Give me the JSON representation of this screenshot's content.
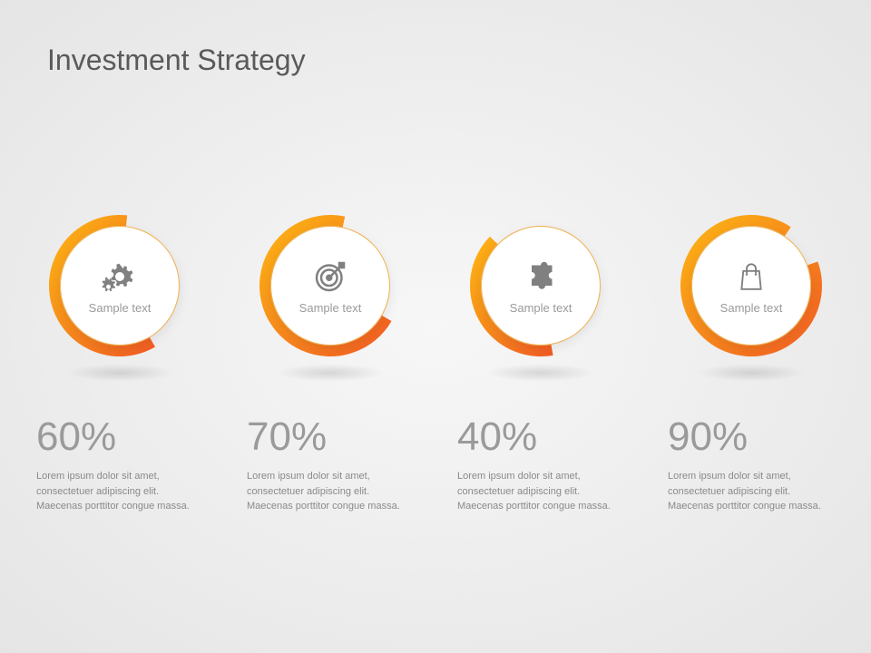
{
  "title": "Investment Strategy",
  "arc": {
    "outer_radius": 78,
    "inner_radius": 66,
    "gradient_start": "#fdb813",
    "gradient_end": "#f15a24",
    "inner_border": "#f0b050",
    "inner_bg": "#ffffff"
  },
  "typography": {
    "title_color": "#5a5a5a",
    "title_fontsize": 32,
    "percent_color": "#9a9a9a",
    "percent_fontsize": 44,
    "label_color": "#9a9a9a",
    "label_fontsize": 13,
    "desc_color": "#8a8a8a",
    "desc_fontsize": 11,
    "icon_color": "#808080"
  },
  "background": {
    "center": "#f7f7f7",
    "edge": "#e5e5e5"
  },
  "items": [
    {
      "icon": "gears",
      "label": "Sample text",
      "percent": "60%",
      "arc_start_deg": 150,
      "arc_sweep_deg": 216,
      "desc": "Lorem ipsum dolor sit amet, consectetuer adipiscing elit. Maecenas porttitor congue massa."
    },
    {
      "icon": "target",
      "label": "Sample text",
      "percent": "70%",
      "arc_start_deg": 120,
      "arc_sweep_deg": 252,
      "desc": "Lorem ipsum dolor sit amet, consectetuer adipiscing elit. Maecenas porttitor congue massa."
    },
    {
      "icon": "puzzle",
      "label": "Sample text",
      "percent": "40%",
      "arc_start_deg": 170,
      "arc_sweep_deg": 144,
      "desc": "Lorem ipsum dolor sit amet, consectetuer adipiscing elit. Maecenas porttitor congue massa."
    },
    {
      "icon": "bag",
      "label": "Sample text",
      "percent": "90%",
      "arc_start_deg": 70,
      "arc_sweep_deg": 324,
      "desc": "Lorem ipsum dolor sit amet, consectetuer adipiscing elit. Maecenas porttitor congue massa."
    }
  ]
}
